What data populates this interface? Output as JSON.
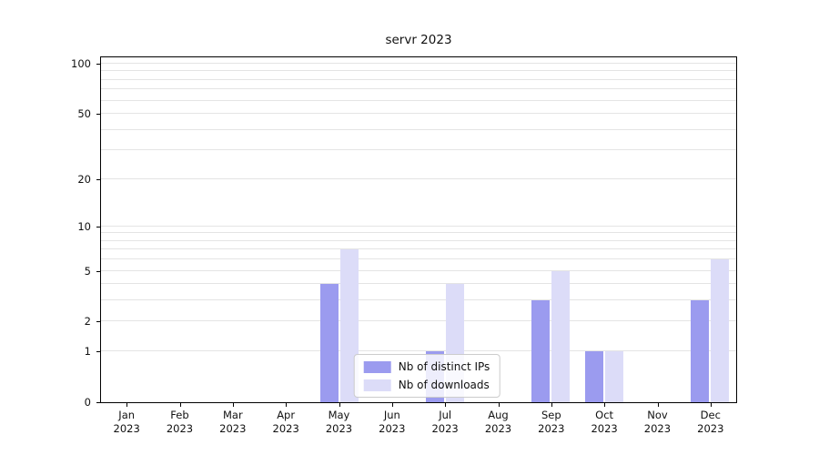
{
  "chart_data": {
    "type": "bar",
    "title": "servr 2023",
    "categories": [
      "Jan",
      "Feb",
      "Mar",
      "Apr",
      "May",
      "Jun",
      "Jul",
      "Aug",
      "Sep",
      "Oct",
      "Nov",
      "Dec"
    ],
    "year_label": "2023",
    "series": [
      {
        "name": "Nb of distinct IPs",
        "color": "#9b9bef",
        "values": [
          0,
          0,
          0,
          0,
          4,
          0,
          1,
          0,
          3,
          1,
          0,
          3
        ]
      },
      {
        "name": "Nb of downloads",
        "color": "#dcdcf8",
        "values": [
          0,
          0,
          0,
          0,
          7,
          0,
          4,
          0,
          5,
          1,
          0,
          6
        ]
      }
    ],
    "y_ticks": [
      0,
      1,
      2,
      5,
      10,
      20,
      50,
      100
    ],
    "gridline_values": [
      1,
      2,
      3,
      4,
      5,
      6,
      7,
      8,
      9,
      10,
      20,
      30,
      40,
      50,
      60,
      70,
      80,
      90,
      100
    ],
    "y_scale": "log1p",
    "ylim": [
      0,
      100
    ],
    "grid": true,
    "legend_position": "lower-center",
    "axis_color": "#000000",
    "grid_color": "#e4e4e4"
  }
}
